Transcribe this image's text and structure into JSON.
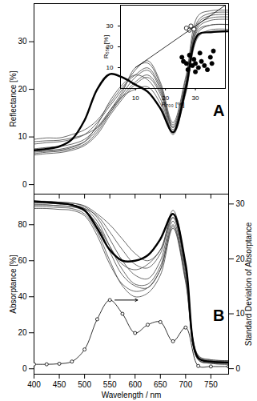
{
  "chart_data": [
    {
      "type": "line",
      "annotation": "A",
      "y_label": "Reflectance [%]",
      "tick_labels": "y",
      "x": [
        400,
        425,
        450,
        475,
        500,
        525,
        550,
        575,
        600,
        625,
        650,
        675,
        700,
        725,
        750,
        785
      ],
      "xlim": [
        400,
        785
      ],
      "xticks": [
        400,
        450,
        500,
        550,
        600,
        650,
        700,
        750
      ],
      "ylim": [
        -2,
        38
      ],
      "yticks": [
        0,
        10,
        20,
        30
      ],
      "series": [
        {
          "color": "#444444",
          "line_style": "thin",
          "values": [
            9.5,
            9.8,
            9.8,
            10.5,
            11.5,
            13.5,
            17,
            20.5,
            23,
            24.5,
            20.5,
            12.5,
            22,
            35.5,
            36.5,
            36.6
          ]
        },
        {
          "color": "#444444",
          "line_style": "thin",
          "values": [
            9,
            9.2,
            9.3,
            9.8,
            10.5,
            12,
            15,
            18.5,
            21.5,
            23,
            19.5,
            12,
            21,
            34.5,
            36,
            36.2
          ]
        },
        {
          "color": "#444444",
          "line_style": "thin",
          "values": [
            6.5,
            6.8,
            7,
            7.5,
            8.5,
            11,
            15,
            19,
            22.5,
            24,
            20,
            11.5,
            21,
            33,
            34.5,
            34.7
          ]
        },
        {
          "color": "#444444",
          "line_style": "thin",
          "values": [
            6.8,
            7,
            7.2,
            7.8,
            9,
            12.5,
            17.5,
            21,
            23,
            22,
            18,
            11,
            20,
            32,
            33.5,
            33.6
          ]
        },
        {
          "color": "#444444",
          "line_style": "thin",
          "values": [
            7.5,
            7.8,
            8,
            8.5,
            9.5,
            12,
            15.5,
            18.5,
            20,
            20.5,
            17,
            10.5,
            19,
            31,
            32.5,
            32.6
          ]
        },
        {
          "color": "#444444",
          "line_style": "thin",
          "values": [
            6.2,
            6.5,
            6.7,
            7.2,
            8.2,
            10.5,
            14.5,
            18,
            21,
            22.5,
            19,
            10.8,
            19.5,
            33.5,
            35,
            35.2
          ]
        },
        {
          "color": "#444444",
          "line_style": "thin",
          "values": [
            8.5,
            8.8,
            9,
            9.5,
            10.5,
            13,
            16.5,
            20,
            24,
            26,
            21.5,
            13,
            22.5,
            34,
            35.5,
            35.7
          ]
        },
        {
          "color": "#444444",
          "line_style": "thin",
          "values": [
            7,
            7.2,
            7.4,
            8,
            9,
            11.5,
            15.5,
            19.5,
            24.5,
            25.5,
            21,
            12,
            21,
            32.5,
            33.5,
            33.6
          ]
        },
        {
          "color": "#000000",
          "line_style": "thick",
          "values": [
            7.2,
            7.5,
            8,
            9.5,
            13.5,
            20,
            23.2,
            22.5,
            21,
            19.5,
            16,
            11,
            20,
            31.5,
            32,
            32.2
          ]
        }
      ]
    },
    {
      "type": "scatter",
      "x_label": "R₇₀₀ [%]",
      "y_label": "R₅₅₈ [%]",
      "xlim": [
        5,
        40
      ],
      "xticks": [
        10,
        20,
        30
      ],
      "ylim": [
        0,
        40
      ],
      "yticks": [
        10,
        20,
        30
      ],
      "series": [
        {
          "color": "#000000",
          "marker": "circle",
          "x": [
            25.5,
            26,
            27,
            28,
            29,
            29.5,
            30,
            31,
            31.5,
            32,
            33,
            34,
            35,
            35.5,
            36,
            27.5,
            30
          ],
          "values": [
            15,
            13,
            12,
            16,
            11,
            14,
            12,
            10,
            17,
            13,
            11,
            9,
            15,
            12,
            18,
            9,
            8
          ]
        },
        {
          "color": "#000000",
          "marker": "open_circle",
          "x": [
            27,
            28.5,
            29.5,
            28
          ],
          "values": [
            29,
            30,
            28.5,
            28
          ]
        },
        {
          "color": "#000000",
          "type": "line",
          "x": [
            10,
            40
          ],
          "values": [
            10,
            40
          ]
        }
      ]
    },
    {
      "type": "line",
      "annotation": "B",
      "x_label": "Wavelength / nm",
      "y_label": "Absorptance [%]",
      "y2_label": "Standard Deviation of Absorptance",
      "x": [
        400,
        425,
        450,
        475,
        500,
        525,
        550,
        575,
        600,
        625,
        650,
        675,
        700,
        725,
        750,
        785
      ],
      "xlim": [
        400,
        785
      ],
      "xticks": [
        400,
        450,
        500,
        550,
        600,
        650,
        700,
        750
      ],
      "ylim": [
        -3,
        97
      ],
      "yticks": [
        0,
        20,
        40,
        60,
        80
      ],
      "y2lim": [
        -1,
        31.8
      ],
      "y2ticks": [
        0,
        10,
        20,
        30
      ],
      "series": [
        {
          "color": "#444444",
          "line_style": "thin",
          "values": [
            91,
            91,
            90.5,
            90,
            88,
            80,
            65,
            52,
            46,
            45,
            55,
            80,
            50,
            5,
            3.5,
            3
          ]
        },
        {
          "color": "#444444",
          "line_style": "thin",
          "values": [
            92,
            92,
            91.5,
            91,
            89,
            82,
            68,
            55,
            47,
            47,
            57,
            82,
            52,
            6,
            4,
            3.5
          ]
        },
        {
          "color": "#444444",
          "line_style": "thin",
          "values": [
            93,
            93,
            92.5,
            92,
            90,
            84,
            72,
            60,
            52,
            50,
            60,
            84,
            55,
            6.5,
            4.5,
            4
          ]
        },
        {
          "color": "#444444",
          "line_style": "thin",
          "values": [
            90,
            90,
            89.5,
            89,
            86,
            76,
            60,
            46,
            40,
            42,
            52,
            78,
            48,
            5,
            3,
            2.5
          ]
        },
        {
          "color": "#444444",
          "line_style": "thin",
          "values": [
            92,
            92,
            91.5,
            91,
            89,
            85,
            76,
            66,
            58,
            56,
            64,
            86,
            56,
            7,
            5,
            4.5
          ]
        },
        {
          "color": "#444444",
          "line_style": "thin",
          "values": [
            91,
            91,
            90.5,
            90,
            87.5,
            80,
            68,
            58,
            55,
            58,
            66,
            84,
            54,
            6,
            4,
            3.5
          ]
        },
        {
          "color": "#444444",
          "line_style": "thin",
          "values": [
            89,
            89,
            88.5,
            88,
            85,
            74,
            58,
            47,
            43,
            45,
            55,
            79,
            49,
            5,
            3,
            2.5
          ]
        },
        {
          "color": "#444444",
          "line_style": "thin",
          "values": [
            93,
            93,
            92.5,
            92,
            90.5,
            86,
            80,
            72,
            64,
            60,
            66,
            88,
            58,
            7.5,
            5,
            4.5
          ]
        },
        {
          "color": "#000000",
          "line_style": "thick",
          "values": [
            93,
            92.5,
            92,
            91,
            88,
            78,
            66,
            60,
            60,
            63,
            72,
            86,
            58,
            6,
            4,
            3.5
          ]
        },
        {
          "color": "#000000",
          "marker": "open_circle",
          "axis": "y2",
          "values": [
            0.8,
            0.8,
            0.9,
            1.3,
            3.5,
            9,
            12.5,
            10,
            6.5,
            8,
            8.5,
            5,
            7.5,
            0.5,
            0.4,
            0.4
          ]
        }
      ]
    }
  ]
}
